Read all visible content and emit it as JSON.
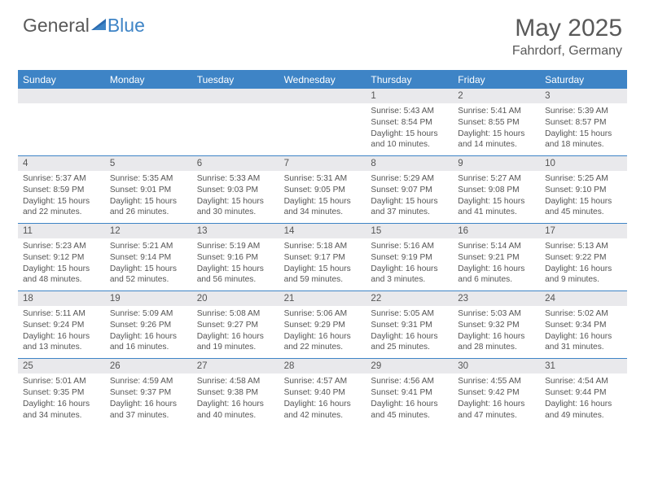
{
  "logo": {
    "part1": "General",
    "part2": "Blue"
  },
  "title": "May 2025",
  "location": "Fahrdorf, Germany",
  "colors": {
    "accent": "#3e84c6",
    "header_text": "#595959",
    "day_bg": "#e9e9ec",
    "body_text": "#555555",
    "white": "#ffffff"
  },
  "days_of_week": [
    "Sunday",
    "Monday",
    "Tuesday",
    "Wednesday",
    "Thursday",
    "Friday",
    "Saturday"
  ],
  "weeks": [
    {
      "dates": [
        "",
        "",
        "",
        "",
        "1",
        "2",
        "3"
      ],
      "cells": [
        null,
        null,
        null,
        null,
        {
          "sunrise": "Sunrise: 5:43 AM",
          "sunset": "Sunset: 8:54 PM",
          "day1": "Daylight: 15 hours",
          "day2": "and 10 minutes."
        },
        {
          "sunrise": "Sunrise: 5:41 AM",
          "sunset": "Sunset: 8:55 PM",
          "day1": "Daylight: 15 hours",
          "day2": "and 14 minutes."
        },
        {
          "sunrise": "Sunrise: 5:39 AM",
          "sunset": "Sunset: 8:57 PM",
          "day1": "Daylight: 15 hours",
          "day2": "and 18 minutes."
        }
      ]
    },
    {
      "dates": [
        "4",
        "5",
        "6",
        "7",
        "8",
        "9",
        "10"
      ],
      "cells": [
        {
          "sunrise": "Sunrise: 5:37 AM",
          "sunset": "Sunset: 8:59 PM",
          "day1": "Daylight: 15 hours",
          "day2": "and 22 minutes."
        },
        {
          "sunrise": "Sunrise: 5:35 AM",
          "sunset": "Sunset: 9:01 PM",
          "day1": "Daylight: 15 hours",
          "day2": "and 26 minutes."
        },
        {
          "sunrise": "Sunrise: 5:33 AM",
          "sunset": "Sunset: 9:03 PM",
          "day1": "Daylight: 15 hours",
          "day2": "and 30 minutes."
        },
        {
          "sunrise": "Sunrise: 5:31 AM",
          "sunset": "Sunset: 9:05 PM",
          "day1": "Daylight: 15 hours",
          "day2": "and 34 minutes."
        },
        {
          "sunrise": "Sunrise: 5:29 AM",
          "sunset": "Sunset: 9:07 PM",
          "day1": "Daylight: 15 hours",
          "day2": "and 37 minutes."
        },
        {
          "sunrise": "Sunrise: 5:27 AM",
          "sunset": "Sunset: 9:08 PM",
          "day1": "Daylight: 15 hours",
          "day2": "and 41 minutes."
        },
        {
          "sunrise": "Sunrise: 5:25 AM",
          "sunset": "Sunset: 9:10 PM",
          "day1": "Daylight: 15 hours",
          "day2": "and 45 minutes."
        }
      ]
    },
    {
      "dates": [
        "11",
        "12",
        "13",
        "14",
        "15",
        "16",
        "17"
      ],
      "cells": [
        {
          "sunrise": "Sunrise: 5:23 AM",
          "sunset": "Sunset: 9:12 PM",
          "day1": "Daylight: 15 hours",
          "day2": "and 48 minutes."
        },
        {
          "sunrise": "Sunrise: 5:21 AM",
          "sunset": "Sunset: 9:14 PM",
          "day1": "Daylight: 15 hours",
          "day2": "and 52 minutes."
        },
        {
          "sunrise": "Sunrise: 5:19 AM",
          "sunset": "Sunset: 9:16 PM",
          "day1": "Daylight: 15 hours",
          "day2": "and 56 minutes."
        },
        {
          "sunrise": "Sunrise: 5:18 AM",
          "sunset": "Sunset: 9:17 PM",
          "day1": "Daylight: 15 hours",
          "day2": "and 59 minutes."
        },
        {
          "sunrise": "Sunrise: 5:16 AM",
          "sunset": "Sunset: 9:19 PM",
          "day1": "Daylight: 16 hours",
          "day2": "and 3 minutes."
        },
        {
          "sunrise": "Sunrise: 5:14 AM",
          "sunset": "Sunset: 9:21 PM",
          "day1": "Daylight: 16 hours",
          "day2": "and 6 minutes."
        },
        {
          "sunrise": "Sunrise: 5:13 AM",
          "sunset": "Sunset: 9:22 PM",
          "day1": "Daylight: 16 hours",
          "day2": "and 9 minutes."
        }
      ]
    },
    {
      "dates": [
        "18",
        "19",
        "20",
        "21",
        "22",
        "23",
        "24"
      ],
      "cells": [
        {
          "sunrise": "Sunrise: 5:11 AM",
          "sunset": "Sunset: 9:24 PM",
          "day1": "Daylight: 16 hours",
          "day2": "and 13 minutes."
        },
        {
          "sunrise": "Sunrise: 5:09 AM",
          "sunset": "Sunset: 9:26 PM",
          "day1": "Daylight: 16 hours",
          "day2": "and 16 minutes."
        },
        {
          "sunrise": "Sunrise: 5:08 AM",
          "sunset": "Sunset: 9:27 PM",
          "day1": "Daylight: 16 hours",
          "day2": "and 19 minutes."
        },
        {
          "sunrise": "Sunrise: 5:06 AM",
          "sunset": "Sunset: 9:29 PM",
          "day1": "Daylight: 16 hours",
          "day2": "and 22 minutes."
        },
        {
          "sunrise": "Sunrise: 5:05 AM",
          "sunset": "Sunset: 9:31 PM",
          "day1": "Daylight: 16 hours",
          "day2": "and 25 minutes."
        },
        {
          "sunrise": "Sunrise: 5:03 AM",
          "sunset": "Sunset: 9:32 PM",
          "day1": "Daylight: 16 hours",
          "day2": "and 28 minutes."
        },
        {
          "sunrise": "Sunrise: 5:02 AM",
          "sunset": "Sunset: 9:34 PM",
          "day1": "Daylight: 16 hours",
          "day2": "and 31 minutes."
        }
      ]
    },
    {
      "dates": [
        "25",
        "26",
        "27",
        "28",
        "29",
        "30",
        "31"
      ],
      "cells": [
        {
          "sunrise": "Sunrise: 5:01 AM",
          "sunset": "Sunset: 9:35 PM",
          "day1": "Daylight: 16 hours",
          "day2": "and 34 minutes."
        },
        {
          "sunrise": "Sunrise: 4:59 AM",
          "sunset": "Sunset: 9:37 PM",
          "day1": "Daylight: 16 hours",
          "day2": "and 37 minutes."
        },
        {
          "sunrise": "Sunrise: 4:58 AM",
          "sunset": "Sunset: 9:38 PM",
          "day1": "Daylight: 16 hours",
          "day2": "and 40 minutes."
        },
        {
          "sunrise": "Sunrise: 4:57 AM",
          "sunset": "Sunset: 9:40 PM",
          "day1": "Daylight: 16 hours",
          "day2": "and 42 minutes."
        },
        {
          "sunrise": "Sunrise: 4:56 AM",
          "sunset": "Sunset: 9:41 PM",
          "day1": "Daylight: 16 hours",
          "day2": "and 45 minutes."
        },
        {
          "sunrise": "Sunrise: 4:55 AM",
          "sunset": "Sunset: 9:42 PM",
          "day1": "Daylight: 16 hours",
          "day2": "and 47 minutes."
        },
        {
          "sunrise": "Sunrise: 4:54 AM",
          "sunset": "Sunset: 9:44 PM",
          "day1": "Daylight: 16 hours",
          "day2": "and 49 minutes."
        }
      ]
    }
  ]
}
